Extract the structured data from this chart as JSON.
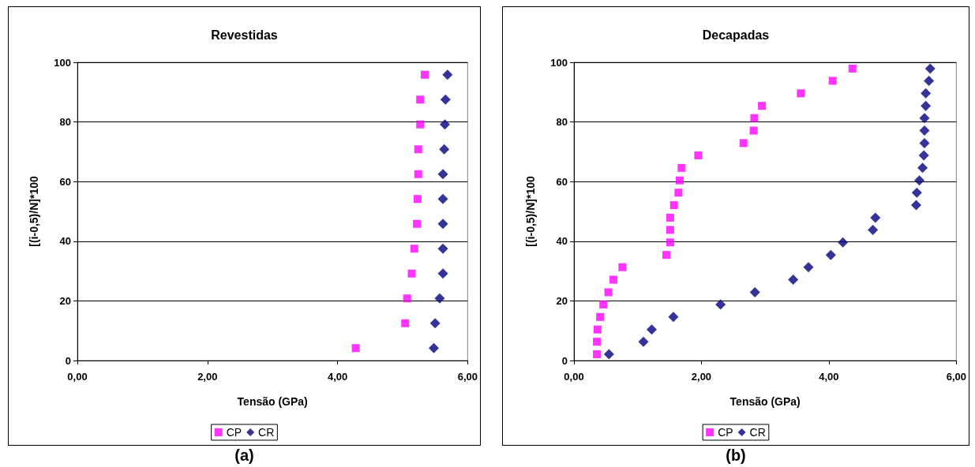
{
  "chart_data": [
    {
      "type": "scatter",
      "title": "Revestidas",
      "xlabel": "Tensão (GPa)",
      "ylabel": "[(i-0,5)/N]*100",
      "annotations": [
        "(a)"
      ],
      "xlim": [
        0,
        6
      ],
      "xticks": [
        {
          "value": 0,
          "label": "0,00"
        },
        {
          "value": 2,
          "label": "2,00"
        },
        {
          "value": 4,
          "label": "4,00"
        },
        {
          "value": 6,
          "label": "6,00"
        }
      ],
      "ylim": [
        0,
        100
      ],
      "yticks": [
        0,
        20,
        40,
        60,
        80,
        100
      ],
      "grid": "y",
      "legend": "bottom",
      "series": [
        {
          "name": "CP",
          "color": "#ff00ff",
          "marker": "square",
          "x": [
            4.28,
            5.04,
            5.07,
            5.14,
            5.18,
            5.22,
            5.23,
            5.24,
            5.24,
            5.27,
            5.27,
            5.34
          ],
          "values": [
            4.17,
            12.5,
            20.83,
            29.17,
            37.5,
            45.83,
            54.17,
            62.5,
            70.83,
            79.17,
            87.5,
            95.83
          ]
        },
        {
          "name": "CR",
          "color": "#000080",
          "marker": "diamond",
          "x": [
            5.48,
            5.5,
            5.57,
            5.62,
            5.62,
            5.62,
            5.62,
            5.62,
            5.64,
            5.65,
            5.66,
            5.69
          ],
          "values": [
            4.17,
            12.5,
            20.83,
            29.17,
            37.5,
            45.83,
            54.17,
            62.5,
            70.83,
            79.17,
            87.5,
            95.83
          ]
        }
      ]
    },
    {
      "type": "scatter",
      "title": "Decapadas",
      "xlabel": "Tensão (GPa)",
      "ylabel": "[(i-0,5)/N]*100",
      "annotations": [
        "(b)"
      ],
      "xlim": [
        0,
        6
      ],
      "xticks": [
        {
          "value": 0,
          "label": "0,00"
        },
        {
          "value": 2,
          "label": "2,00"
        },
        {
          "value": 4,
          "label": "4,00"
        },
        {
          "value": 6,
          "label": "6,00"
        }
      ],
      "ylim": [
        0,
        100
      ],
      "yticks": [
        0,
        20,
        40,
        60,
        80,
        100
      ],
      "grid": "y",
      "legend": "bottom",
      "series": [
        {
          "name": "CP",
          "color": "#ff00ff",
          "marker": "square",
          "x": [
            0.36,
            0.36,
            0.37,
            0.41,
            0.46,
            0.54,
            0.62,
            0.76,
            1.45,
            1.51,
            1.51,
            1.51,
            1.57,
            1.64,
            1.66,
            1.69,
            1.95,
            2.66,
            2.82,
            2.83,
            2.95,
            3.56,
            4.06,
            4.37
          ],
          "values": [
            2.1,
            6.3,
            10.4,
            14.6,
            18.8,
            22.9,
            27.1,
            31.3,
            35.4,
            39.6,
            43.8,
            47.9,
            52.1,
            56.3,
            60.4,
            64.6,
            68.8,
            72.9,
            77.1,
            81.3,
            85.4,
            89.6,
            93.8,
            97.9
          ]
        },
        {
          "name": "CR",
          "color": "#000080",
          "marker": "diamond",
          "x": [
            0.55,
            1.09,
            1.22,
            1.56,
            2.3,
            2.84,
            3.44,
            3.68,
            4.03,
            4.22,
            4.69,
            4.73,
            5.37,
            5.38,
            5.42,
            5.47,
            5.49,
            5.5,
            5.5,
            5.5,
            5.52,
            5.52,
            5.57,
            5.59
          ],
          "values": [
            2.1,
            6.3,
            10.4,
            14.6,
            18.8,
            22.9,
            27.1,
            31.3,
            35.4,
            39.6,
            43.8,
            47.9,
            52.1,
            56.3,
            60.4,
            64.6,
            68.8,
            72.9,
            77.1,
            81.3,
            85.4,
            89.6,
            93.8,
            97.9
          ]
        }
      ]
    }
  ]
}
